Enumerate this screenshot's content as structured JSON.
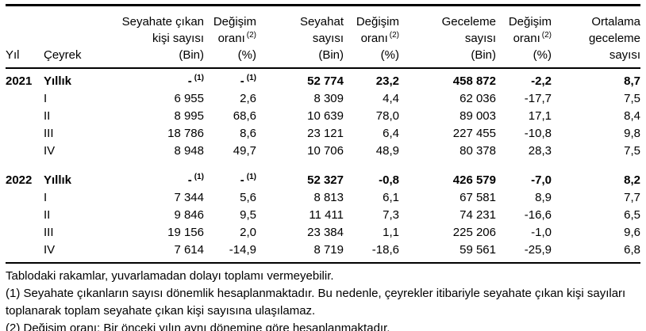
{
  "header": {
    "col_yil": "Yıl",
    "col_ceyrek": "Çeyrek",
    "cols": [
      {
        "lines": [
          "Seyahate çıkan",
          "kişi sayısı",
          "(Bin)"
        ]
      },
      {
        "lines": [
          "Değişim",
          "oranı",
          "(%)"
        ],
        "sup": "(2)",
        "sup_line": 1
      },
      {
        "lines": [
          "Seyahat",
          "sayısı",
          "(Bin)"
        ]
      },
      {
        "lines": [
          "Değişim",
          "oranı",
          "(%)"
        ],
        "sup": "(2)",
        "sup_line": 1
      },
      {
        "lines": [
          "Geceleme",
          "sayısı",
          "(Bin)"
        ]
      },
      {
        "lines": [
          "Değişim",
          "oranı",
          "(%)"
        ],
        "sup": "(2)",
        "sup_line": 1
      },
      {
        "lines": [
          "Ortalama",
          "geceleme",
          "sayısı"
        ]
      }
    ]
  },
  "body": {
    "groups": [
      {
        "year": "2021",
        "rows": [
          {
            "quarter": "Yıllık",
            "bold": true,
            "values": [
              "-",
              "-",
              "52 774",
              "23,2",
              "458 872",
              "-2,2",
              "8,7"
            ],
            "sups": [
              "(1)",
              "(1)",
              "",
              "",
              "",
              "",
              ""
            ]
          },
          {
            "quarter": "I",
            "values": [
              "6 955",
              "2,6",
              "8 309",
              "4,4",
              "62 036",
              "-17,7",
              "7,5"
            ]
          },
          {
            "quarter": "II",
            "values": [
              "8 995",
              "68,6",
              "10 639",
              "78,0",
              "89 003",
              "17,1",
              "8,4"
            ]
          },
          {
            "quarter": "III",
            "values": [
              "18 786",
              "8,6",
              "23 121",
              "6,4",
              "227 455",
              "-10,8",
              "9,8"
            ]
          },
          {
            "quarter": "IV",
            "values": [
              "8 948",
              "49,7",
              "10 706",
              "48,9",
              "80 378",
              "28,3",
              "7,5"
            ]
          }
        ]
      },
      {
        "year": "2022",
        "rows": [
          {
            "quarter": "Yıllık",
            "bold": true,
            "values": [
              "-",
              "-",
              "52 327",
              "-0,8",
              "426 579",
              "-7,0",
              "8,2"
            ],
            "sups": [
              "(1)",
              "(1)",
              "",
              "",
              "",
              "",
              ""
            ]
          },
          {
            "quarter": "I",
            "values": [
              "7 344",
              "5,6",
              "8 813",
              "6,1",
              "67 581",
              "8,9",
              "7,7"
            ]
          },
          {
            "quarter": "II",
            "values": [
              "9 846",
              "9,5",
              "11 411",
              "7,3",
              "74 231",
              "-16,6",
              "6,5"
            ]
          },
          {
            "quarter": "III",
            "values": [
              "19 156",
              "2,0",
              "23 384",
              "1,1",
              "225 206",
              "-1,0",
              "9,6"
            ]
          },
          {
            "quarter": "IV",
            "values": [
              "7 614",
              "-14,9",
              "8 719",
              "-18,6",
              "59 561",
              "-25,9",
              "6,8"
            ]
          }
        ]
      }
    ]
  },
  "footnotes": [
    "Tablodaki rakamlar, yuvarlamadan dolayı toplamı vermeyebilir.",
    "(1) Seyahate çıkanların sayısı dönemlik hesaplanmaktadır. Bu nedenle, çeyrekler itibariyle seyahate çıkan kişi sayıları toplanarak toplam seyahate çıkan kişi sayısına ulaşılamaz.",
    "(2) Değişim oranı: Bir önceki yılın aynı dönemine göre hesaplanmaktadır."
  ]
}
